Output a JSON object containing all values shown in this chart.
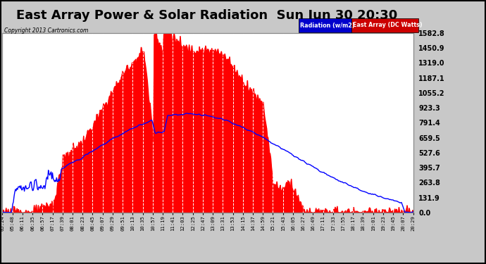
{
  "title": "East Array Power & Solar Radiation  Sun Jun 30 20:30",
  "copyright": "Copyright 2013 Cartronics.com",
  "legend_labels": [
    "Radiation (w/m2)",
    "East Array (DC Watts)"
  ],
  "y_ticks": [
    0.0,
    131.9,
    263.8,
    395.7,
    527.6,
    659.5,
    791.4,
    923.3,
    1055.2,
    1187.1,
    1319.0,
    1450.9,
    1582.8
  ],
  "y_max": 1582.8,
  "y_min": 0.0,
  "x_labels": [
    "05:24",
    "05:48",
    "06:11",
    "06:35",
    "06:57",
    "07:17",
    "07:39",
    "08:01",
    "08:23",
    "08:45",
    "09:07",
    "09:29",
    "09:51",
    "10:13",
    "10:35",
    "10:57",
    "11:19",
    "11:41",
    "12:03",
    "12:25",
    "12:47",
    "13:09",
    "13:31",
    "13:53",
    "14:15",
    "14:37",
    "14:59",
    "15:21",
    "15:43",
    "16:05",
    "16:27",
    "16:49",
    "17:11",
    "17:33",
    "17:55",
    "18:17",
    "18:39",
    "19:01",
    "19:23",
    "19:45",
    "20:07",
    "20:29"
  ],
  "background_color": "#c8c8c8",
  "plot_bg_color": "#ffffff",
  "grid_color": "#bbbbbb",
  "title_color": "#000000",
  "title_fontsize": 13,
  "fill_color_power": "#ff0000",
  "line_color_radiation": "#0000ff",
  "legend_blue_bg": "#0000cc",
  "legend_red_bg": "#cc0000"
}
